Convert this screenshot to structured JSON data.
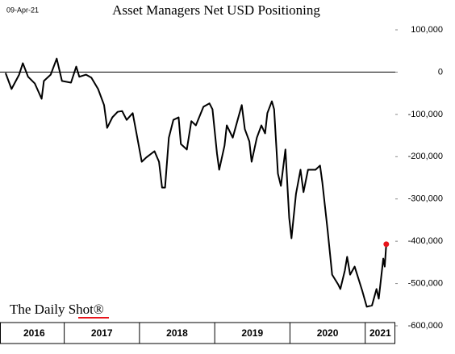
{
  "chart_data": {
    "type": "line",
    "date_label": "09-Apr-21",
    "title": "Asset Managers Net USD Positioning",
    "watermark": "The Daily Shot®",
    "color": "#000000",
    "last_point_color": "#e8141b",
    "zero_line": true,
    "grid": false,
    "xlim": [
      2016.2,
      2021.4
    ],
    "xticks": [
      {
        "value": 2016,
        "label": "2016"
      },
      {
        "value": 2017,
        "label": "2017"
      },
      {
        "value": 2018,
        "label": "2018"
      },
      {
        "value": 2019,
        "label": "2019"
      },
      {
        "value": 2020,
        "label": "2020"
      },
      {
        "value": 2021,
        "label": "2021"
      }
    ],
    "ylim": [
      -600000,
      100000
    ],
    "yticks": [
      {
        "value": 100000,
        "label": "100,000"
      },
      0,
      {
        "value": -100000,
        "label": "-100,000"
      },
      {
        "value": -200000,
        "label": "-200,000"
      },
      {
        "value": -300000,
        "label": "-300,000"
      },
      {
        "value": -400000,
        "label": "-400,000"
      },
      {
        "value": -500000,
        "label": "-500,000"
      },
      {
        "value": -600000,
        "label": "-600,000"
      }
    ],
    "x": [
      2016.22,
      2016.3,
      2016.4,
      2016.45,
      2016.52,
      2016.61,
      2016.7,
      2016.73,
      2016.82,
      2016.9,
      2016.97,
      2017.09,
      2017.16,
      2017.2,
      2017.29,
      2017.36,
      2017.45,
      2017.53,
      2017.57,
      2017.64,
      2017.71,
      2017.77,
      2017.83,
      2017.91,
      2017.96,
      2018.03,
      2018.09,
      2018.2,
      2018.26,
      2018.3,
      2018.34,
      2018.39,
      2018.45,
      2018.52,
      2018.55,
      2018.63,
      2018.69,
      2018.75,
      2018.85,
      2018.93,
      2018.97,
      2019.03,
      2019.06,
      2019.13,
      2019.16,
      2019.24,
      2019.33,
      2019.36,
      2019.4,
      2019.46,
      2019.49,
      2019.56,
      2019.62,
      2019.67,
      2019.7,
      2019.76,
      2019.79,
      2019.84,
      2019.88,
      2019.94,
      2019.99,
      2020.02,
      2020.08,
      2020.14,
      2020.18,
      2020.24,
      2020.34,
      2020.4,
      2020.43,
      2020.5,
      2020.56,
      2020.64,
      2020.67,
      2020.73,
      2020.76,
      2020.8,
      2020.86,
      2020.96,
      2021.02,
      2021.09,
      2021.15,
      2021.18,
      2021.24,
      2021.26,
      2021.28
    ],
    "values": [
      -2000,
      -40000,
      -6000,
      21000,
      -11000,
      -27000,
      -63000,
      -21000,
      -6000,
      32000,
      -21000,
      -25000,
      13000,
      -11000,
      -6000,
      -13000,
      -40000,
      -78000,
      -132000,
      -107000,
      -94000,
      -92000,
      -113000,
      -97000,
      -145000,
      -212000,
      -202000,
      -187000,
      -212000,
      -273000,
      -273000,
      -155000,
      -113000,
      -107000,
      -170000,
      -183000,
      -116000,
      -126000,
      -82000,
      -74000,
      -88000,
      -193000,
      -231000,
      -174000,
      -126000,
      -155000,
      -97000,
      -78000,
      -135000,
      -164000,
      -212000,
      -155000,
      -126000,
      -145000,
      -97000,
      -69000,
      -88000,
      -240000,
      -269000,
      -183000,
      -345000,
      -393000,
      -288000,
      -231000,
      -284000,
      -231000,
      -231000,
      -221000,
      -260000,
      -374000,
      -479000,
      -502000,
      -513000,
      -469000,
      -437000,
      -479000,
      -460000,
      -517000,
      -555000,
      -552000,
      -513000,
      -536000,
      -441000,
      -460000,
      -407000
    ]
  }
}
